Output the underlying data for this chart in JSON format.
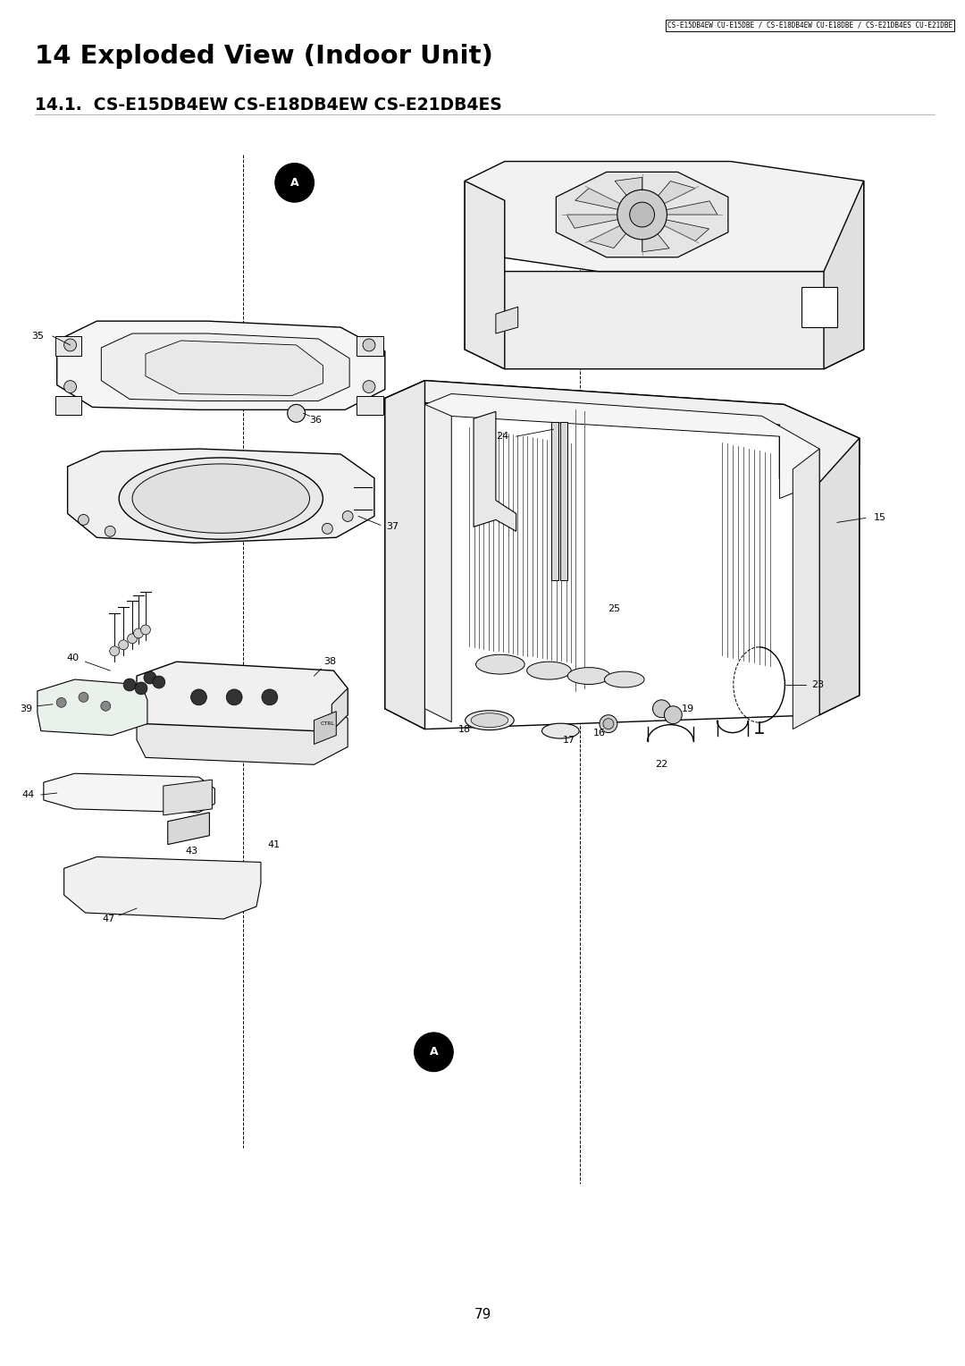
{
  "page_title": "14 Exploded View (Indoor Unit)",
  "subtitle": "14.1.  CS-E15DB4EW CS-E18DB4EW CS-E21DB4ES",
  "header_text": "CS-E15DB4EW CU-E15DBE / CS-E18DB4EW CU-E18DBE / CS-E21DB4ES CU-E21DBE",
  "page_number": "79",
  "bg_color": "#ffffff",
  "line_color": "#000000"
}
